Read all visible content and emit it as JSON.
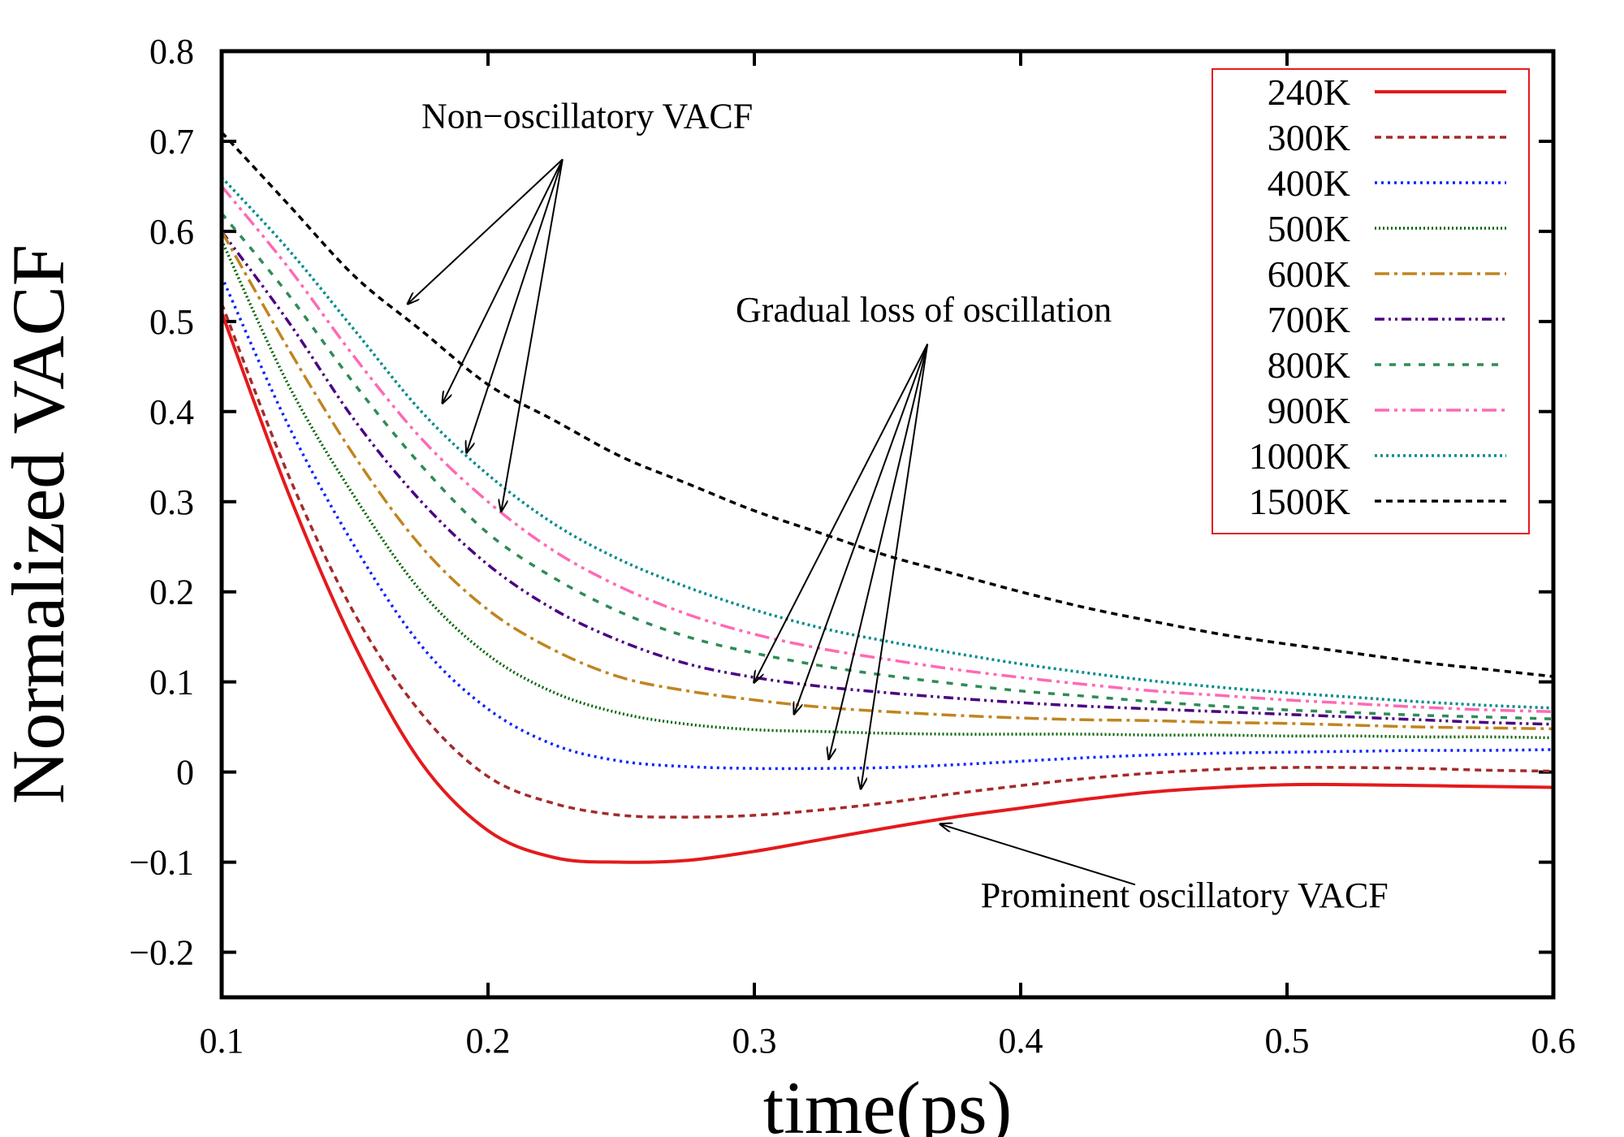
{
  "chart_data": {
    "type": "line",
    "title": "",
    "xlabel": "time(ps)",
    "ylabel": "Normalized VACF",
    "xlim": [
      0.1,
      0.6
    ],
    "ylim": [
      -0.25,
      0.8
    ],
    "x_ticks": [
      "0.1",
      "0.2",
      "0.3",
      "0.4",
      "0.5",
      "0.6"
    ],
    "y_ticks": [
      "−0.2",
      "−0.1",
      "0",
      "0.1",
      "0.2",
      "0.3",
      "0.4",
      "0.5",
      "0.6",
      "0.7",
      "0.8"
    ],
    "x_tick_values": [
      0.1,
      0.2,
      0.3,
      0.4,
      0.5,
      0.6
    ],
    "y_tick_values": [
      -0.2,
      -0.1,
      0,
      0.1,
      0.2,
      0.3,
      0.4,
      0.5,
      0.6,
      0.7,
      0.8
    ],
    "grid": false,
    "legend": "top-right",
    "x": [
      0.1,
      0.125,
      0.15,
      0.175,
      0.2,
      0.225,
      0.25,
      0.275,
      0.3,
      0.325,
      0.35,
      0.375,
      0.4,
      0.425,
      0.45,
      0.475,
      0.5,
      0.525,
      0.55,
      0.575,
      0.6
    ],
    "series": [
      {
        "name": "240K",
        "color": "#e41a1c",
        "dash": "",
        "values": [
          0.51,
          0.31,
          0.14,
          0.01,
          -0.065,
          -0.095,
          -0.1,
          -0.098,
          -0.088,
          -0.075,
          -0.062,
          -0.05,
          -0.04,
          -0.03,
          -0.022,
          -0.017,
          -0.014,
          -0.014,
          -0.015,
          -0.016,
          -0.017
        ]
      },
      {
        "name": "300K",
        "color": "#a52a2a",
        "dash": "8,6",
        "values": [
          0.52,
          0.33,
          0.175,
          0.065,
          -0.005,
          -0.035,
          -0.048,
          -0.05,
          -0.048,
          -0.042,
          -0.034,
          -0.024,
          -0.015,
          -0.007,
          -0.001,
          0.003,
          0.005,
          0.005,
          0.004,
          0.002,
          0.001
        ]
      },
      {
        "name": "400K",
        "color": "#0b24fb",
        "dash": "3,5",
        "values": [
          0.55,
          0.385,
          0.25,
          0.14,
          0.07,
          0.03,
          0.012,
          0.006,
          0.004,
          0.004,
          0.005,
          0.008,
          0.012,
          0.016,
          0.019,
          0.021,
          0.022,
          0.023,
          0.024,
          0.024,
          0.025
        ]
      },
      {
        "name": "500K",
        "color": "#006400",
        "dash": "2,3",
        "values": [
          0.59,
          0.43,
          0.305,
          0.2,
          0.13,
          0.088,
          0.065,
          0.053,
          0.047,
          0.045,
          0.043,
          0.042,
          0.042,
          0.042,
          0.041,
          0.041,
          0.04,
          0.04,
          0.039,
          0.039,
          0.038
        ]
      },
      {
        "name": "600K",
        "color": "#c08520",
        "dash": "18,6,4,6",
        "values": [
          0.6,
          0.47,
          0.35,
          0.25,
          0.18,
          0.135,
          0.105,
          0.09,
          0.08,
          0.072,
          0.067,
          0.063,
          0.06,
          0.058,
          0.057,
          0.055,
          0.054,
          0.052,
          0.05,
          0.049,
          0.048
        ]
      },
      {
        "name": "700K",
        "color": "#4b0082",
        "dash": "12,5,3,5,3,5",
        "values": [
          0.6,
          0.5,
          0.39,
          0.3,
          0.23,
          0.18,
          0.145,
          0.12,
          0.105,
          0.095,
          0.088,
          0.082,
          0.077,
          0.073,
          0.07,
          0.067,
          0.064,
          0.061,
          0.058,
          0.055,
          0.053
        ]
      },
      {
        "name": "800K",
        "color": "#2e8b57",
        "dash": "8,10",
        "values": [
          0.62,
          0.53,
          0.43,
          0.34,
          0.265,
          0.215,
          0.177,
          0.15,
          0.132,
          0.118,
          0.107,
          0.098,
          0.09,
          0.084,
          0.078,
          0.073,
          0.069,
          0.066,
          0.063,
          0.061,
          0.059
        ]
      },
      {
        "name": "900K",
        "color": "#ff69b4",
        "dash": "18,6,4,6,4,6",
        "values": [
          0.65,
          0.56,
          0.46,
          0.37,
          0.3,
          0.245,
          0.205,
          0.175,
          0.153,
          0.137,
          0.125,
          0.114,
          0.105,
          0.097,
          0.09,
          0.085,
          0.08,
          0.076,
          0.072,
          0.069,
          0.067
        ]
      },
      {
        "name": "1000K",
        "color": "#008b8b",
        "dash": "3,4",
        "values": [
          0.66,
          0.58,
          0.49,
          0.4,
          0.33,
          0.275,
          0.235,
          0.205,
          0.18,
          0.16,
          0.145,
          0.132,
          0.12,
          0.11,
          0.101,
          0.094,
          0.088,
          0.083,
          0.078,
          0.074,
          0.071
        ]
      },
      {
        "name": "1500K",
        "color": "#000000",
        "dash": "8,6",
        "values": [
          0.71,
          0.63,
          0.55,
          0.49,
          0.43,
          0.39,
          0.35,
          0.32,
          0.29,
          0.265,
          0.24,
          0.22,
          0.2,
          0.182,
          0.167,
          0.153,
          0.142,
          0.132,
          0.122,
          0.114,
          0.106
        ]
      }
    ],
    "annotations": [
      {
        "text": "Non−oscillatory VACF",
        "x": 0.175,
        "y": 0.715,
        "targets": [
          [
            0.17,
            0.52
          ],
          [
            0.183,
            0.41
          ],
          [
            0.192,
            0.355
          ],
          [
            0.205,
            0.29
          ]
        ],
        "source": [
          0.228,
          0.68
        ]
      },
      {
        "text": "Gradual loss of oscillation",
        "x": 0.293,
        "y": 0.5,
        "targets": [
          [
            0.3,
            0.1
          ],
          [
            0.315,
            0.065
          ],
          [
            0.328,
            0.015
          ],
          [
            0.34,
            -0.018
          ]
        ],
        "source": [
          0.365,
          0.475
        ]
      },
      {
        "text": "Prominent oscillatory VACF",
        "x": 0.385,
        "y": -0.15,
        "targets": [
          [
            0.37,
            -0.058
          ]
        ],
        "source": [
          0.443,
          -0.125
        ]
      }
    ]
  }
}
